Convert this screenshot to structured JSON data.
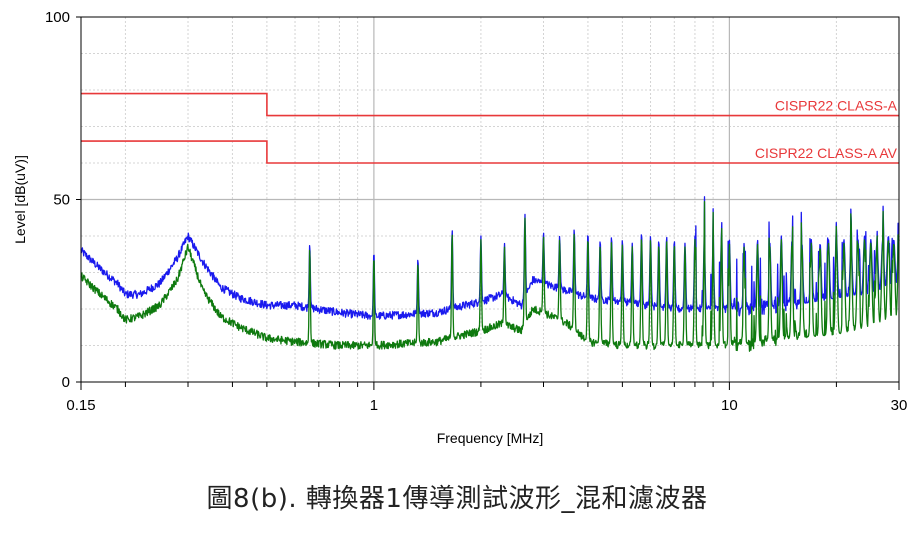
{
  "caption": "圖8(b). 轉換器1傳導測試波形_混和濾波器",
  "chart_data": {
    "type": "line",
    "xlabel": "Frequency [MHz]",
    "ylabel": "Level [dB(uV)]",
    "x_scale": "log",
    "xlim": [
      0.15,
      30
    ],
    "ylim": [
      0,
      100
    ],
    "x_ticks": [
      0.15,
      1,
      10,
      30
    ],
    "x_tick_labels": [
      "0.15",
      "1",
      "10",
      "30"
    ],
    "y_ticks": [
      0,
      50,
      100
    ],
    "y_tick_labels": [
      "0",
      "50",
      "100"
    ],
    "grid": true,
    "colors": {
      "qp": "#1a1aee",
      "av": "#0f7a0f",
      "limit": "#e8383a"
    },
    "limits": [
      {
        "name": "CISPR22 CLASS-A",
        "points": [
          [
            0.15,
            79
          ],
          [
            0.5,
            79
          ],
          [
            0.5,
            73
          ],
          [
            30,
            73
          ]
        ]
      },
      {
        "name": "CISPR22 CLASS-A AV",
        "points": [
          [
            0.15,
            66
          ],
          [
            0.5,
            66
          ],
          [
            0.5,
            60
          ],
          [
            30,
            60
          ]
        ]
      }
    ],
    "series": [
      {
        "key": "qp",
        "floor": [
          [
            0.15,
            36
          ],
          [
            0.17,
            31
          ],
          [
            0.19,
            27
          ],
          [
            0.2,
            24
          ],
          [
            0.22,
            24
          ],
          [
            0.25,
            27
          ],
          [
            0.28,
            34
          ],
          [
            0.3,
            40
          ],
          [
            0.33,
            33
          ],
          [
            0.37,
            26
          ],
          [
            0.42,
            23
          ],
          [
            0.5,
            21
          ],
          [
            0.6,
            21
          ],
          [
            0.8,
            19
          ],
          [
            1.0,
            18
          ],
          [
            1.5,
            19
          ],
          [
            1.8,
            21
          ],
          [
            2.0,
            22
          ],
          [
            2.3,
            24
          ],
          [
            2.6,
            21
          ],
          [
            2.8,
            28
          ],
          [
            3.0,
            27
          ],
          [
            3.5,
            25
          ],
          [
            4.0,
            23
          ],
          [
            5.0,
            22
          ],
          [
            7.0,
            20
          ],
          [
            10.0,
            20
          ],
          [
            15.0,
            21
          ],
          [
            20.0,
            23
          ],
          [
            25.0,
            24
          ],
          [
            30.0,
            26
          ]
        ],
        "peaks": [
          [
            0.66,
            38
          ],
          [
            1.0,
            36
          ],
          [
            1.33,
            34
          ],
          [
            1.66,
            42
          ],
          [
            2.0,
            40
          ],
          [
            2.33,
            38
          ],
          [
            2.66,
            46
          ],
          [
            3.0,
            41
          ],
          [
            3.33,
            40
          ],
          [
            3.66,
            42
          ],
          [
            4.0,
            41
          ],
          [
            4.33,
            39
          ],
          [
            4.66,
            40
          ],
          [
            5.0,
            39
          ],
          [
            5.33,
            38
          ],
          [
            5.66,
            41
          ],
          [
            6.0,
            40
          ],
          [
            6.33,
            39
          ],
          [
            6.66,
            40
          ],
          [
            7.0,
            39
          ],
          [
            7.5,
            38
          ],
          [
            8.0,
            40
          ],
          [
            8.5,
            39
          ],
          [
            9.0,
            38
          ],
          [
            9.5,
            40
          ],
          [
            10.0,
            39
          ],
          [
            11.0,
            38
          ],
          [
            12.0,
            39
          ],
          [
            13.0,
            38
          ],
          [
            14.0,
            40
          ],
          [
            15.0,
            39
          ],
          [
            16.0,
            38
          ],
          [
            17.0,
            39
          ],
          [
            18.0,
            38
          ],
          [
            19.0,
            39
          ],
          [
            20.0,
            40
          ],
          [
            21.0,
            39
          ],
          [
            22.0,
            38
          ],
          [
            23.0,
            39
          ],
          [
            24.0,
            40
          ],
          [
            25.0,
            39
          ],
          [
            26.0,
            38
          ],
          [
            27.0,
            39
          ],
          [
            28.0,
            40
          ],
          [
            29.0,
            39
          ],
          [
            30.0,
            40
          ]
        ]
      },
      {
        "key": "av",
        "floor": [
          [
            0.15,
            29
          ],
          [
            0.17,
            24
          ],
          [
            0.19,
            20
          ],
          [
            0.2,
            17
          ],
          [
            0.22,
            18
          ],
          [
            0.25,
            21
          ],
          [
            0.28,
            28
          ],
          [
            0.3,
            37
          ],
          [
            0.33,
            25
          ],
          [
            0.37,
            18
          ],
          [
            0.42,
            15
          ],
          [
            0.5,
            12
          ],
          [
            0.6,
            11
          ],
          [
            0.8,
            10
          ],
          [
            1.0,
            10
          ],
          [
            1.5,
            11
          ],
          [
            1.8,
            13
          ],
          [
            2.0,
            14
          ],
          [
            2.3,
            16
          ],
          [
            2.6,
            14
          ],
          [
            2.8,
            20
          ],
          [
            3.0,
            19
          ],
          [
            3.5,
            16
          ],
          [
            4.0,
            11
          ],
          [
            5.0,
            10
          ],
          [
            7.0,
            10
          ],
          [
            10.0,
            10
          ],
          [
            15.0,
            12
          ],
          [
            20.0,
            13
          ],
          [
            25.0,
            15
          ],
          [
            30.0,
            16
          ]
        ],
        "peaks": [
          [
            0.66,
            37
          ],
          [
            1.0,
            35
          ],
          [
            1.33,
            33
          ],
          [
            1.66,
            41
          ],
          [
            2.0,
            39
          ],
          [
            2.33,
            37
          ],
          [
            2.66,
            45
          ],
          [
            3.0,
            40
          ],
          [
            3.33,
            39
          ],
          [
            3.66,
            41
          ],
          [
            4.0,
            40
          ],
          [
            4.33,
            38
          ],
          [
            4.66,
            39
          ],
          [
            5.0,
            38
          ],
          [
            5.33,
            37
          ],
          [
            5.66,
            40
          ],
          [
            6.0,
            39
          ],
          [
            6.33,
            38
          ],
          [
            6.66,
            39
          ],
          [
            7.0,
            38
          ],
          [
            7.5,
            37
          ],
          [
            8.0,
            39
          ],
          [
            8.5,
            38
          ],
          [
            9.0,
            37
          ],
          [
            9.5,
            39
          ],
          [
            10.0,
            38
          ],
          [
            11.0,
            37
          ],
          [
            12.0,
            38
          ],
          [
            13.0,
            37
          ],
          [
            14.0,
            39
          ],
          [
            15.0,
            38
          ],
          [
            16.0,
            37
          ],
          [
            17.0,
            38
          ],
          [
            18.0,
            37
          ],
          [
            19.0,
            38
          ],
          [
            20.0,
            39
          ],
          [
            21.0,
            38
          ],
          [
            22.0,
            37
          ],
          [
            23.0,
            38
          ],
          [
            24.0,
            39
          ],
          [
            25.0,
            38
          ],
          [
            26.0,
            37
          ],
          [
            27.0,
            38
          ],
          [
            28.0,
            39
          ],
          [
            29.0,
            38
          ],
          [
            30.0,
            39
          ]
        ]
      }
    ]
  }
}
